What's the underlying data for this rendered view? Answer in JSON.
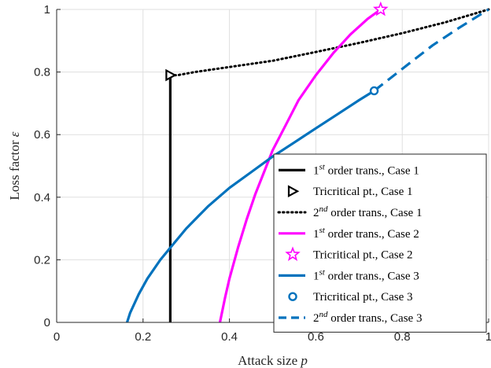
{
  "chart_data": {
    "type": "line",
    "title": "",
    "xlabel": "Attack size p",
    "ylabel": "Loss factor ε",
    "xlim": [
      0,
      1
    ],
    "ylim": [
      0,
      1
    ],
    "xticks": [
      0,
      0.2,
      0.4,
      0.6,
      0.8,
      1
    ],
    "yticks": [
      0,
      0.2,
      0.4,
      0.6,
      0.8,
      1
    ],
    "xtick_labels": [
      "0",
      "0.2",
      "0.4",
      "0.6",
      "0.8",
      "1"
    ],
    "ytick_labels": [
      "0",
      "0.2",
      "0.4",
      "0.6",
      "0.8",
      "1"
    ],
    "grid": true,
    "legend_position": "lower-right",
    "series": [
      {
        "name": "1st order trans., Case 1",
        "label_main": "1",
        "label_sup": "st",
        "label_rest": " order trans., Case 1",
        "kind": "line",
        "color": "#000000",
        "dash": "solid",
        "points": [
          [
            0.263,
            0.0
          ],
          [
            0.263,
            0.79
          ]
        ]
      },
      {
        "name": "Tricritical pt., Case 1",
        "label_main": "Tricritical pt., Case 1",
        "label_sup": "",
        "label_rest": "",
        "kind": "marker",
        "marker": "triangle-right",
        "color": "#000000",
        "points": [
          [
            0.263,
            0.79
          ]
        ]
      },
      {
        "name": "2nd order trans., Case 1",
        "label_main": "2",
        "label_sup": "nd",
        "label_rest": " order trans., Case 1",
        "kind": "line",
        "color": "#000000",
        "dash": "dotted",
        "points": [
          [
            0.263,
            0.79
          ],
          [
            0.28,
            0.79
          ],
          [
            0.32,
            0.8
          ],
          [
            0.4,
            0.816
          ],
          [
            0.5,
            0.836
          ],
          [
            0.6,
            0.864
          ],
          [
            0.7,
            0.893
          ],
          [
            0.8,
            0.924
          ],
          [
            0.9,
            0.959
          ],
          [
            1.0,
            1.0
          ]
        ]
      },
      {
        "name": "1st order trans., Case 2",
        "label_main": "1",
        "label_sup": "st",
        "label_rest": " order trans., Case 2",
        "kind": "line",
        "color": "#FF00FF",
        "dash": "solid",
        "points": [
          [
            0.378,
            0.0
          ],
          [
            0.39,
            0.08
          ],
          [
            0.4,
            0.14
          ],
          [
            0.42,
            0.24
          ],
          [
            0.44,
            0.33
          ],
          [
            0.46,
            0.41
          ],
          [
            0.48,
            0.48
          ],
          [
            0.5,
            0.55
          ],
          [
            0.53,
            0.63
          ],
          [
            0.56,
            0.71
          ],
          [
            0.6,
            0.79
          ],
          [
            0.64,
            0.86
          ],
          [
            0.68,
            0.92
          ],
          [
            0.72,
            0.97
          ],
          [
            0.75,
            1.0
          ]
        ]
      },
      {
        "name": "Tricritical pt., Case 2",
        "label_main": "Tricritical pt., Case 2",
        "label_sup": "",
        "label_rest": "",
        "kind": "marker",
        "marker": "star",
        "color": "#FF00FF",
        "points": [
          [
            0.75,
            1.0
          ]
        ]
      },
      {
        "name": "1st order trans., Case 3",
        "label_main": "1",
        "label_sup": "st",
        "label_rest": " order trans., Case 3",
        "kind": "line",
        "color": "#0072BD",
        "dash": "solid",
        "points": [
          [
            0.163,
            0.0
          ],
          [
            0.17,
            0.03
          ],
          [
            0.19,
            0.09
          ],
          [
            0.21,
            0.14
          ],
          [
            0.24,
            0.2
          ],
          [
            0.27,
            0.25
          ],
          [
            0.3,
            0.3
          ],
          [
            0.35,
            0.37
          ],
          [
            0.4,
            0.43
          ],
          [
            0.45,
            0.48
          ],
          [
            0.5,
            0.53
          ],
          [
            0.55,
            0.575
          ],
          [
            0.6,
            0.62
          ],
          [
            0.65,
            0.665
          ],
          [
            0.7,
            0.71
          ],
          [
            0.735,
            0.74
          ]
        ]
      },
      {
        "name": "Tricritical pt., Case 3",
        "label_main": "Tricritical pt., Case 3",
        "label_sup": "",
        "label_rest": "",
        "kind": "marker",
        "marker": "circle",
        "color": "#0072BD",
        "points": [
          [
            0.735,
            0.74
          ]
        ]
      },
      {
        "name": "2nd order trans., Case 3",
        "label_main": "2",
        "label_sup": "nd",
        "label_rest": " order trans., Case 3",
        "kind": "line",
        "color": "#0072BD",
        "dash": "dashed",
        "points": [
          [
            0.735,
            0.74
          ],
          [
            0.8,
            0.81
          ],
          [
            0.87,
            0.885
          ],
          [
            0.93,
            0.94
          ],
          [
            1.0,
            1.0
          ]
        ]
      }
    ]
  }
}
